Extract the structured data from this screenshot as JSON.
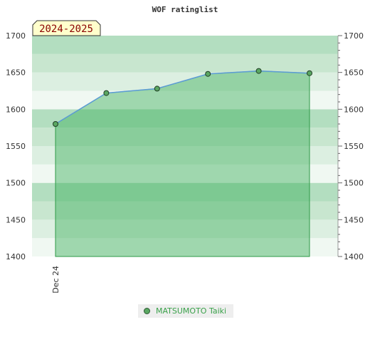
{
  "chart_data": {
    "type": "area",
    "title": "WOF ratinglist",
    "season_label": "2024-2025",
    "x_tick_labels": [
      "Dec 24"
    ],
    "ylim": [
      1400,
      1700
    ],
    "y_ticks": [
      1400,
      1450,
      1500,
      1550,
      1600,
      1650,
      1700
    ],
    "grid": true,
    "legend_position": "bottom",
    "series": [
      {
        "name": "MATSUMOTO Taiki",
        "values": [
          1580,
          1622,
          1628,
          1648,
          1652,
          1649
        ]
      }
    ]
  },
  "colors": {
    "line": "#5b9bd5",
    "fill": "#3cb05a",
    "marker": "#5aa762",
    "legend_text": "#3aa14a"
  }
}
